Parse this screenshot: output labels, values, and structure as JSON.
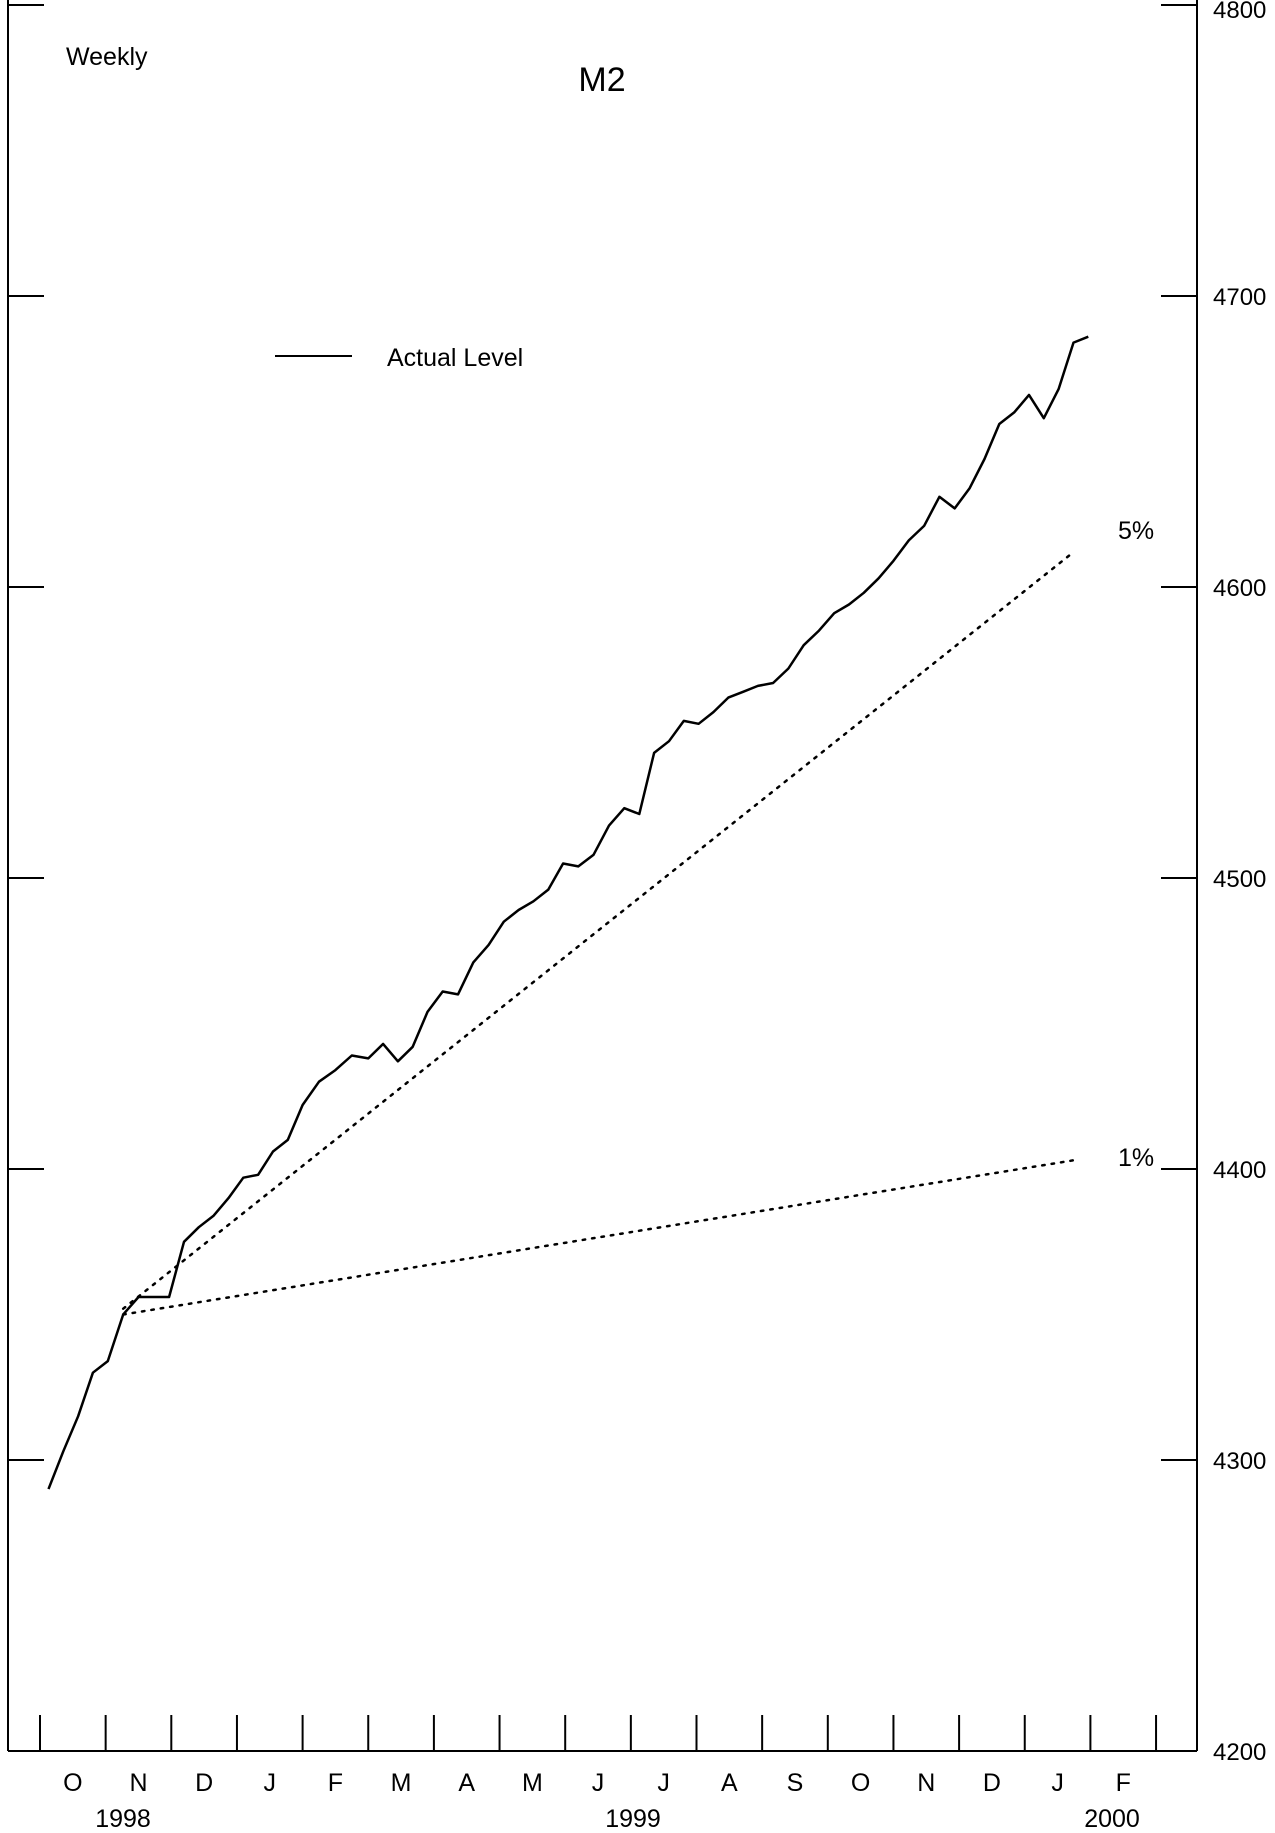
{
  "chart_data": {
    "type": "line",
    "title": "M2",
    "frequency_label": "Weekly",
    "y_axis": {
      "side": "right",
      "ylim": [
        4200,
        4800
      ],
      "ticks": [
        4200,
        4300,
        4400,
        4500,
        4600,
        4700,
        4800
      ],
      "tick_labels": [
        "4200",
        "4300",
        "4400",
        "4500",
        "4600",
        "4700",
        "4800"
      ]
    },
    "x_axis": {
      "months": [
        "O",
        "N",
        "D",
        "J",
        "F",
        "M",
        "A",
        "M",
        "J",
        "J",
        "A",
        "S",
        "O",
        "N",
        "D",
        "J",
        "F"
      ],
      "years": [
        "1998",
        "1999",
        "2000"
      ]
    },
    "legend": {
      "placement": "upper-left",
      "entries": [
        "Actual Level"
      ]
    },
    "series": [
      {
        "name": "Actual Level",
        "style": "solid",
        "x": [
          "1998-10-05",
          "1998-10-12",
          "1998-10-19",
          "1998-10-26",
          "1998-11-02",
          "1998-11-09",
          "1998-11-16",
          "1998-11-23",
          "1998-11-30",
          "1998-12-07",
          "1998-12-14",
          "1998-12-21",
          "1998-12-28",
          "1999-01-04",
          "1999-01-11",
          "1999-01-18",
          "1999-01-25",
          "1999-02-01",
          "1999-02-08",
          "1999-02-15",
          "1999-02-22",
          "1999-03-01",
          "1999-03-08",
          "1999-03-15",
          "1999-03-22",
          "1999-03-29",
          "1999-04-05",
          "1999-04-12",
          "1999-04-19",
          "1999-04-26",
          "1999-05-03",
          "1999-05-10",
          "1999-05-17",
          "1999-05-24",
          "1999-05-31",
          "1999-06-07",
          "1999-06-14",
          "1999-06-21",
          "1999-06-28",
          "1999-07-05",
          "1999-07-12",
          "1999-07-19",
          "1999-07-26",
          "1999-08-02",
          "1999-08-09",
          "1999-08-16",
          "1999-08-23",
          "1999-08-30",
          "1999-09-06",
          "1999-09-13",
          "1999-09-20",
          "1999-09-27",
          "1999-10-04",
          "1999-10-11",
          "1999-10-18",
          "1999-10-25",
          "1999-11-01",
          "1999-11-08",
          "1999-11-15",
          "1999-11-22",
          "1999-11-29",
          "1999-12-06",
          "1999-12-13",
          "1999-12-20",
          "1999-12-27",
          "2000-01-03",
          "2000-01-10",
          "2000-01-17",
          "2000-01-24",
          "2000-01-31"
        ],
        "values": [
          4290,
          4303,
          4315,
          4330,
          4334,
          4350,
          4356,
          4356,
          4356,
          4375,
          4380,
          4384,
          4390,
          4397,
          4398,
          4406,
          4410,
          4422,
          4430,
          4434,
          4439,
          4438,
          4443,
          4437,
          4442,
          4454,
          4461,
          4460,
          4471,
          4477,
          4485,
          4489,
          4492,
          4496,
          4505,
          4504,
          4508,
          4518,
          4524,
          4522,
          4543,
          4547,
          4554,
          4553,
          4557,
          4562,
          4564,
          4566,
          4567,
          4572,
          4580,
          4585,
          4591,
          4594,
          4598,
          4603,
          4609,
          4616,
          4621,
          4631,
          4627,
          4634,
          4644,
          4656,
          4660,
          4666,
          4658,
          4668,
          4684,
          4686
        ]
      },
      {
        "name": "5%",
        "style": "dotted",
        "x": [
          "1998-11-09",
          "2000-01-24"
        ],
        "values": [
          4352,
          4612
        ]
      },
      {
        "name": "1%",
        "style": "dotted",
        "x": [
          "1998-11-09",
          "2000-01-24"
        ],
        "values": [
          4350,
          4403
        ]
      }
    ]
  }
}
